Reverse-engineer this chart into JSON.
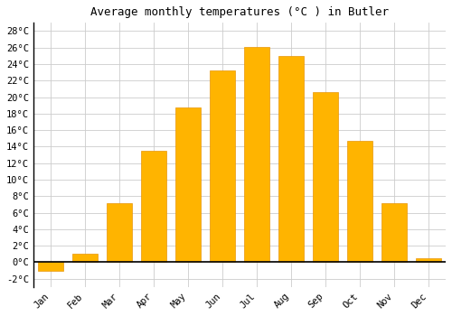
{
  "title": "Average monthly temperatures (°C ) in Butler",
  "months": [
    "Jan",
    "Feb",
    "Mar",
    "Apr",
    "May",
    "Jun",
    "Jul",
    "Aug",
    "Sep",
    "Oct",
    "Nov",
    "Dec"
  ],
  "values": [
    -1.0,
    1.0,
    7.2,
    13.5,
    18.8,
    23.2,
    26.1,
    25.0,
    20.6,
    14.7,
    7.2,
    0.5
  ],
  "bar_color_top": "#FFB400",
  "bar_color_bottom": "#FF8C00",
  "bar_edge_color": "#E8960A",
  "ylim": [
    -3.0,
    29.0
  ],
  "yticks": [
    -2,
    0,
    2,
    4,
    6,
    8,
    10,
    12,
    14,
    16,
    18,
    20,
    22,
    24,
    26,
    28
  ],
  "ytick_labels": [
    "-2°C",
    "0°C",
    "2°C",
    "4°C",
    "6°C",
    "8°C",
    "10°C",
    "12°C",
    "14°C",
    "16°C",
    "18°C",
    "20°C",
    "22°C",
    "24°C",
    "26°C",
    "28°C"
  ],
  "plot_bg_color": "#FFFFFF",
  "fig_bg_color": "#FFFFFF",
  "grid_color": "#CCCCCC",
  "title_fontsize": 9,
  "tick_fontsize": 7.5,
  "font_family": "monospace"
}
